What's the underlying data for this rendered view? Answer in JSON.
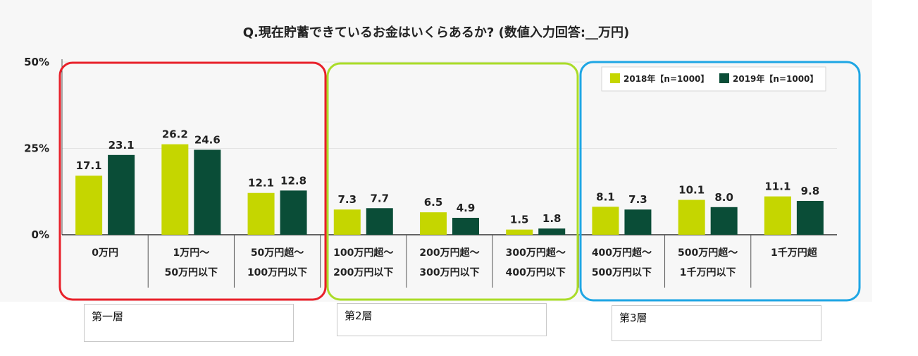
{
  "chart_data": {
    "type": "bar",
    "title": "Q.現在貯蓄できているお金はいくらあるか? (数値入力回答:__万円)",
    "xlabel": "",
    "ylabel": "",
    "ylim": [
      0,
      50
    ],
    "yticks": [
      "50%",
      "25%",
      "0%"
    ],
    "ytick_values": [
      50,
      25,
      0
    ],
    "grid": true,
    "legend_position": "top-right",
    "categories": [
      [
        "0万円"
      ],
      [
        "1万円〜",
        "50万円以下"
      ],
      [
        "50万円超〜",
        "100万円以下"
      ],
      [
        "100万円超〜",
        "200万円以下"
      ],
      [
        "200万円超〜",
        "300万円以下"
      ],
      [
        "300万円超〜",
        "400万円以下"
      ],
      [
        "400万円超〜",
        "500万円以下"
      ],
      [
        "500万円超〜",
        "1千万円以下"
      ],
      [
        "1千万円超"
      ]
    ],
    "series": [
      {
        "name": "2018年【n=1000】",
        "color": "#c5d600",
        "values": [
          17.1,
          26.2,
          12.1,
          7.3,
          6.5,
          1.5,
          8.1,
          10.1,
          11.1
        ]
      },
      {
        "name": "2019年【n=1000】",
        "color": "#0a4d37",
        "values": [
          23.1,
          24.6,
          12.8,
          7.7,
          4.9,
          1.8,
          7.3,
          8.0,
          9.8
        ]
      }
    ]
  },
  "groups": [
    {
      "label": "第一層",
      "color": "#e8202a"
    },
    {
      "label": "第2層",
      "color": "#aadc28"
    },
    {
      "label": "第3層",
      "color": "#1ea6e4"
    }
  ]
}
